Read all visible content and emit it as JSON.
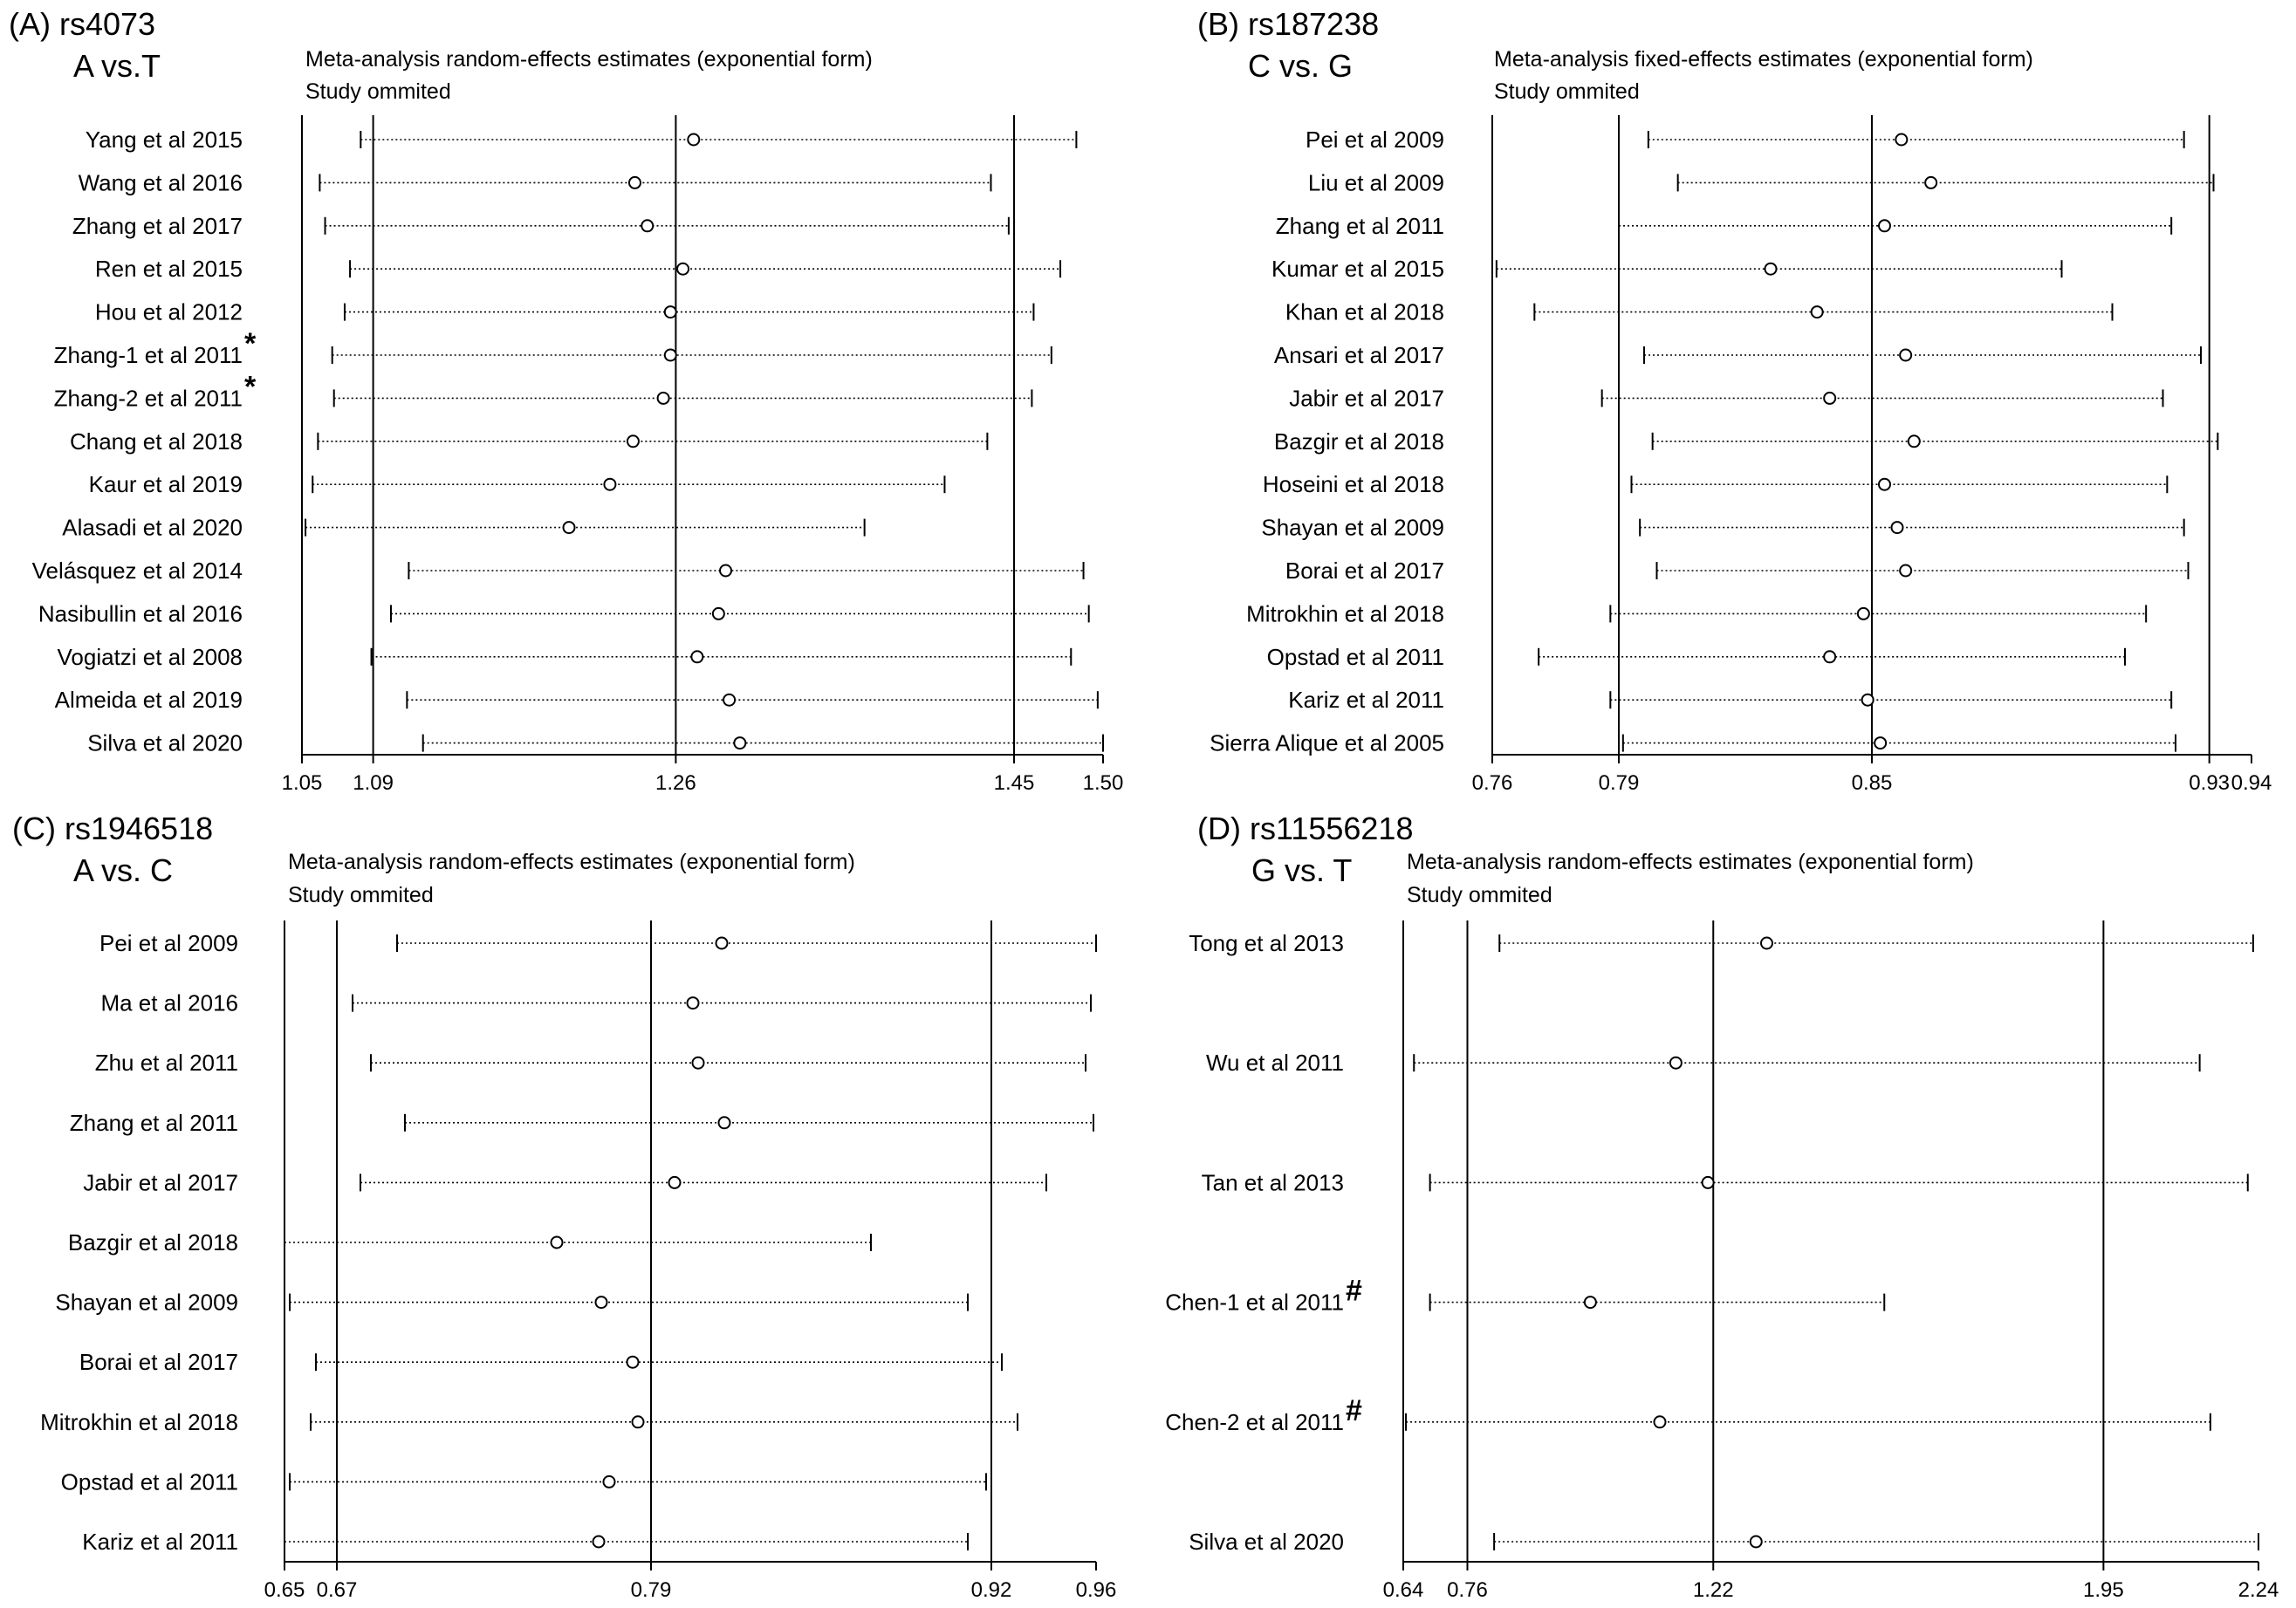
{
  "chart_data": [
    {
      "type": "forest",
      "panel_label": "(A) rs4073",
      "comparison": "A vs.T",
      "title": "Meta-analysis random-effects estimates (exponential form)",
      "subtitle": "Study ommited",
      "xlim": [
        1.05,
        1.5
      ],
      "ticks": [
        {
          "value": 1.05,
          "label": "1.05"
        },
        {
          "value": 1.09,
          "label": "1.09"
        },
        {
          "value": 1.26,
          "label": "1.26"
        },
        {
          "value": 1.45,
          "label": "1.45"
        },
        {
          "value": 1.5,
          "label": "1.50"
        }
      ],
      "reference_lines": [
        1.09,
        1.26,
        1.45
      ],
      "studies": [
        {
          "label": "Yang et al 2015",
          "mark": "",
          "estimate": 1.27,
          "lower": 1.083,
          "upper": 1.485
        },
        {
          "label": "Wang et al 2016",
          "mark": "",
          "estimate": 1.237,
          "lower": 1.06,
          "upper": 1.437
        },
        {
          "label": "Zhang et al 2017",
          "mark": "",
          "estimate": 1.244,
          "lower": 1.063,
          "upper": 1.447
        },
        {
          "label": "Ren et al 2015",
          "mark": "",
          "estimate": 1.264,
          "lower": 1.077,
          "upper": 1.476
        },
        {
          "label": "Hou et al 2012",
          "mark": "",
          "estimate": 1.257,
          "lower": 1.074,
          "upper": 1.461
        },
        {
          "label": "Zhang-1 et al 2011",
          "mark": "*",
          "estimate": 1.257,
          "lower": 1.067,
          "upper": 1.471
        },
        {
          "label": "Zhang-2 et al 2011",
          "mark": "*",
          "estimate": 1.253,
          "lower": 1.068,
          "upper": 1.46
        },
        {
          "label": "Chang et al 2018",
          "mark": "",
          "estimate": 1.236,
          "lower": 1.059,
          "upper": 1.435
        },
        {
          "label": "Kaur et al 2019",
          "mark": "",
          "estimate": 1.223,
          "lower": 1.056,
          "upper": 1.411
        },
        {
          "label": "Alasadi et al 2020",
          "mark": "",
          "estimate": 1.2,
          "lower": 1.052,
          "upper": 1.366
        },
        {
          "label": "Velásquez et al 2014",
          "mark": "",
          "estimate": 1.288,
          "lower": 1.11,
          "upper": 1.489
        },
        {
          "label": "Nasibullin et al 2016",
          "mark": "",
          "estimate": 1.284,
          "lower": 1.1,
          "upper": 1.492
        },
        {
          "label": "Vogiatzi et al 2008",
          "mark": "",
          "estimate": 1.272,
          "lower": 1.089,
          "upper": 1.482
        },
        {
          "label": "Almeida et al 2019",
          "mark": "",
          "estimate": 1.29,
          "lower": 1.109,
          "upper": 1.497
        },
        {
          "label": "Silva et al 2020",
          "mark": "",
          "estimate": 1.296,
          "lower": 1.118,
          "upper": 1.5
        }
      ]
    },
    {
      "type": "forest",
      "panel_label": "(B) rs187238",
      "comparison": "C vs. G",
      "title": "Meta-analysis fixed-effects estimates (exponential form)",
      "subtitle": "Study ommited",
      "xlim": [
        0.76,
        0.94
      ],
      "ticks": [
        {
          "value": 0.76,
          "label": "0.76"
        },
        {
          "value": 0.79,
          "label": "0.79"
        },
        {
          "value": 0.85,
          "label": "0.85"
        },
        {
          "value": 0.93,
          "label": "0.93"
        },
        {
          "value": 0.94,
          "label": "0.94"
        }
      ],
      "reference_lines": [
        0.79,
        0.85,
        0.93
      ],
      "studies": [
        {
          "label": "Pei et al 2009",
          "mark": "",
          "estimate": 0.857,
          "lower": 0.797,
          "upper": 0.924
        },
        {
          "label": "Liu et al 2009",
          "mark": "",
          "estimate": 0.864,
          "lower": 0.804,
          "upper": 0.931
        },
        {
          "label": "Zhang et al 2011",
          "mark": "",
          "estimate": 0.853,
          "lower": 0.79,
          "upper": 0.921
        },
        {
          "label": "Kumar et al 2015",
          "mark": "",
          "estimate": 0.826,
          "lower": 0.761,
          "upper": 0.895
        },
        {
          "label": "Khan et al 2018",
          "mark": "",
          "estimate": 0.837,
          "lower": 0.77,
          "upper": 0.907
        },
        {
          "label": "Ansari et al 2017",
          "mark": "",
          "estimate": 0.858,
          "lower": 0.796,
          "upper": 0.928
        },
        {
          "label": "Jabir et al 2017",
          "mark": "",
          "estimate": 0.84,
          "lower": 0.786,
          "upper": 0.919
        },
        {
          "label": "Bazgir et al 2018",
          "mark": "",
          "estimate": 0.86,
          "lower": 0.798,
          "upper": 0.932
        },
        {
          "label": "Hoseini et al 2018",
          "mark": "",
          "estimate": 0.853,
          "lower": 0.793,
          "upper": 0.92
        },
        {
          "label": "Shayan et al 2009",
          "mark": "",
          "estimate": 0.856,
          "lower": 0.795,
          "upper": 0.924
        },
        {
          "label": "Borai et al 2017",
          "mark": "",
          "estimate": 0.858,
          "lower": 0.799,
          "upper": 0.925
        },
        {
          "label": "Mitrokhin et al 2018",
          "mark": "",
          "estimate": 0.848,
          "lower": 0.788,
          "upper": 0.915
        },
        {
          "label": "Opstad et al 2011",
          "mark": "",
          "estimate": 0.84,
          "lower": 0.771,
          "upper": 0.91
        },
        {
          "label": "Kariz et al 2011",
          "mark": "",
          "estimate": 0.849,
          "lower": 0.788,
          "upper": 0.921
        },
        {
          "label": "Sierra Alique et al 2005",
          "mark": "",
          "estimate": 0.852,
          "lower": 0.791,
          "upper": 0.922
        }
      ]
    },
    {
      "type": "forest",
      "panel_label": "(C) rs1946518",
      "comparison": "A vs. C",
      "title": "Meta-analysis random-effects estimates (exponential form)",
      "subtitle": "Study ommited",
      "xlim": [
        0.65,
        0.96
      ],
      "ticks": [
        {
          "value": 0.65,
          "label": "0.65"
        },
        {
          "value": 0.67,
          "label": "0.67"
        },
        {
          "value": 0.79,
          "label": "0.79"
        },
        {
          "value": 0.92,
          "label": "0.92"
        },
        {
          "value": 0.96,
          "label": "0.96"
        }
      ],
      "reference_lines": [
        0.67,
        0.79,
        0.92
      ],
      "studies": [
        {
          "label": "Pei et al 2009",
          "mark": "",
          "estimate": 0.817,
          "lower": 0.693,
          "upper": 0.96
        },
        {
          "label": "Ma et al 2016",
          "mark": "",
          "estimate": 0.806,
          "lower": 0.676,
          "upper": 0.958
        },
        {
          "label": "Zhu et al 2011",
          "mark": "",
          "estimate": 0.808,
          "lower": 0.683,
          "upper": 0.956
        },
        {
          "label": "Zhang et al 2011",
          "mark": "",
          "estimate": 0.818,
          "lower": 0.696,
          "upper": 0.959
        },
        {
          "label": "Jabir et al 2017",
          "mark": "",
          "estimate": 0.799,
          "lower": 0.679,
          "upper": 0.941
        },
        {
          "label": "Bazgir et al 2018",
          "mark": "",
          "estimate": 0.754,
          "lower": 0.65,
          "upper": 0.874
        },
        {
          "label": "Shayan et al 2009",
          "mark": "",
          "estimate": 0.771,
          "lower": 0.652,
          "upper": 0.911
        },
        {
          "label": "Borai et al 2017",
          "mark": "",
          "estimate": 0.783,
          "lower": 0.662,
          "upper": 0.924
        },
        {
          "label": "Mitrokhin et al 2018",
          "mark": "",
          "estimate": 0.785,
          "lower": 0.66,
          "upper": 0.93
        },
        {
          "label": "Opstad et al 2011",
          "mark": "",
          "estimate": 0.774,
          "lower": 0.652,
          "upper": 0.918
        },
        {
          "label": "Kariz et al 2011",
          "mark": "",
          "estimate": 0.77,
          "lower": 0.65,
          "upper": 0.911
        }
      ]
    },
    {
      "type": "forest",
      "panel_label": "(D) rs11556218",
      "comparison": "G vs. T",
      "title": "Meta-analysis random-effects estimates (exponential form)",
      "subtitle": "Study ommited",
      "xlim": [
        0.64,
        2.24
      ],
      "ticks": [
        {
          "value": 0.64,
          "label": "0.64"
        },
        {
          "value": 0.76,
          "label": "0.76"
        },
        {
          "value": 1.22,
          "label": "1.22"
        },
        {
          "value": 1.95,
          "label": "1.95"
        },
        {
          "value": 2.24,
          "label": "2.24"
        }
      ],
      "reference_lines": [
        0.76,
        1.22,
        1.95
      ],
      "studies": [
        {
          "label": "Tong et al 2013",
          "mark": "",
          "estimate": 1.32,
          "lower": 0.82,
          "upper": 2.23
        },
        {
          "label": "Wu et al 2011",
          "mark": "",
          "estimate": 1.15,
          "lower": 0.66,
          "upper": 2.13
        },
        {
          "label": "Tan et al 2013",
          "mark": "",
          "estimate": 1.21,
          "lower": 0.69,
          "upper": 2.22
        },
        {
          "label": "Chen-1 et al 2011",
          "mark": "#",
          "estimate": 0.99,
          "lower": 0.69,
          "upper": 1.54
        },
        {
          "label": "Chen-2 et al 2011",
          "mark": "#",
          "estimate": 1.12,
          "lower": 0.645,
          "upper": 2.15
        },
        {
          "label": "Silva et al 2020",
          "mark": "",
          "estimate": 1.3,
          "lower": 0.81,
          "upper": 2.24
        }
      ]
    }
  ]
}
